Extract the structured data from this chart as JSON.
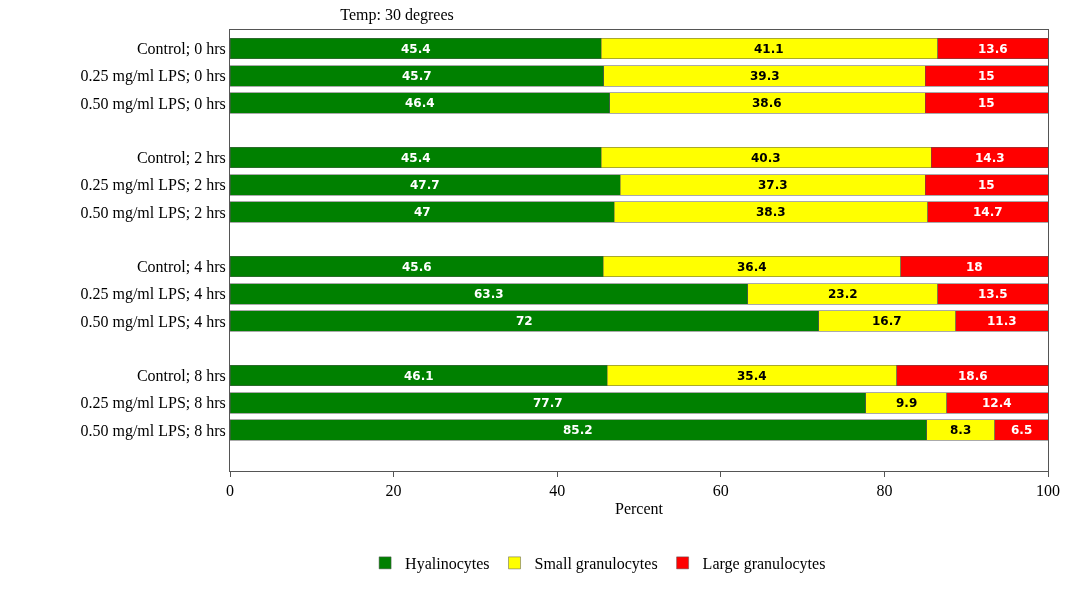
{
  "chart_data": {
    "type": "bar",
    "orientation": "horizontal",
    "stacked": true,
    "title": "Temp: 30 degrees",
    "xlabel": "Percent",
    "categories": [
      "Control; 0 hrs",
      "0.25 mg/ml LPS; 0 hrs",
      "0.50 mg/ml LPS; 0 hrs",
      null,
      "Control; 2 hrs",
      "0.25 mg/ml LPS; 2 hrs",
      "0.50 mg/ml LPS; 2 hrs",
      null,
      "Control; 4 hrs",
      "0.25 mg/ml LPS; 4 hrs",
      "0.50 mg/ml LPS; 4 hrs",
      null,
      "Control; 8 hrs",
      "0.25 mg/ml LPS; 8 hrs",
      "0.50 mg/ml LPS; 8 hrs"
    ],
    "series": [
      {
        "name": "Hyalinocytes",
        "color": "#008000",
        "values": [
          45.4,
          45.7,
          46.4,
          null,
          45.4,
          47.7,
          47,
          null,
          45.6,
          63.3,
          72,
          null,
          46.1,
          77.7,
          85.2
        ]
      },
      {
        "name": "Small granulocytes",
        "color": "#ffff00",
        "values": [
          41.1,
          39.3,
          38.6,
          null,
          40.3,
          37.3,
          38.3,
          null,
          36.4,
          23.2,
          16.7,
          null,
          35.4,
          9.9,
          8.3
        ]
      },
      {
        "name": "Large granulocytes",
        "color": "#ff0000",
        "values": [
          13.6,
          15,
          15,
          null,
          14.3,
          15,
          14.7,
          null,
          18,
          13.5,
          11.3,
          null,
          18.6,
          12.4,
          6.5
        ]
      }
    ],
    "xlim": [
      0,
      100
    ],
    "xticks": [
      0,
      20,
      40,
      60,
      80,
      100
    ],
    "data_labels": true,
    "legend": "bottom"
  }
}
